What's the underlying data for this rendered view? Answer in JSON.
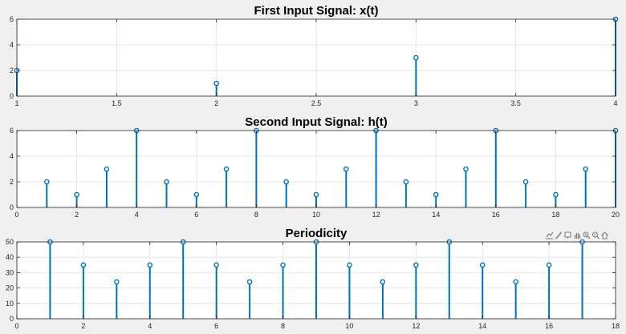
{
  "window": {
    "background": "#f0f0f0"
  },
  "style": {
    "stem_color": "#0072BD",
    "axes_background": "#ffffff",
    "grid_color": "#e6e6e6",
    "axis_color": "#262626"
  },
  "toolbar": {
    "icons": [
      "export-icon",
      "brush-icon",
      "datatip-icon",
      "pan-icon",
      "zoom-in-icon",
      "zoom-out-icon",
      "home-icon"
    ]
  },
  "chart_data": [
    {
      "type": "stem",
      "title": "First Input Signal: x(t)",
      "x": [
        1,
        2,
        3,
        4
      ],
      "y": [
        2,
        1,
        3,
        6
      ],
      "xlim": [
        1,
        4
      ],
      "ylim": [
        0,
        6
      ],
      "xticks": [
        1,
        1.5,
        2,
        2.5,
        3,
        3.5,
        4
      ],
      "xtick_labels": [
        "1",
        "1.5",
        "2",
        "2.5",
        "3",
        "3.5",
        "4"
      ],
      "yticks": [
        0,
        2,
        4,
        6
      ],
      "ytick_labels": [
        "0",
        "2",
        "4",
        "6"
      ],
      "grid": true
    },
    {
      "type": "stem",
      "title": "Second Input Signal: h(t)",
      "x": [
        1,
        2,
        3,
        4,
        5,
        6,
        7,
        8,
        9,
        10,
        11,
        12,
        13,
        14,
        15,
        16,
        17,
        18,
        19,
        20
      ],
      "y": [
        2,
        1,
        3,
        6,
        2,
        1,
        3,
        6,
        2,
        1,
        3,
        6,
        2,
        1,
        3,
        6,
        2,
        1,
        3,
        6
      ],
      "xlim": [
        0,
        20
      ],
      "ylim": [
        0,
        6
      ],
      "xticks": [
        0,
        2,
        4,
        6,
        8,
        10,
        12,
        14,
        16,
        18,
        20
      ],
      "xtick_labels": [
        "0",
        "2",
        "4",
        "6",
        "8",
        "10",
        "12",
        "14",
        "16",
        "18",
        "20"
      ],
      "yticks": [
        0,
        2,
        4,
        6
      ],
      "ytick_labels": [
        "0",
        "2",
        "4",
        "6"
      ],
      "grid": true
    },
    {
      "type": "stem",
      "title": "Periodicity",
      "x": [
        1,
        2,
        3,
        4,
        5,
        6,
        7,
        8,
        9,
        10,
        11,
        12,
        13,
        14,
        15,
        16,
        17
      ],
      "y": [
        50,
        35,
        24,
        35,
        50,
        35,
        24,
        35,
        50,
        35,
        24,
        35,
        50,
        35,
        24,
        35,
        50
      ],
      "xlim": [
        0,
        18
      ],
      "ylim": [
        0,
        50
      ],
      "xticks": [
        0,
        2,
        4,
        6,
        8,
        10,
        12,
        14,
        16,
        18
      ],
      "xtick_labels": [
        "0",
        "2",
        "4",
        "6",
        "8",
        "10",
        "12",
        "14",
        "16",
        "18"
      ],
      "yticks": [
        0,
        10,
        20,
        30,
        40,
        50
      ],
      "ytick_labels": [
        "0",
        "10",
        "20",
        "30",
        "40",
        "50"
      ],
      "grid": true
    }
  ]
}
